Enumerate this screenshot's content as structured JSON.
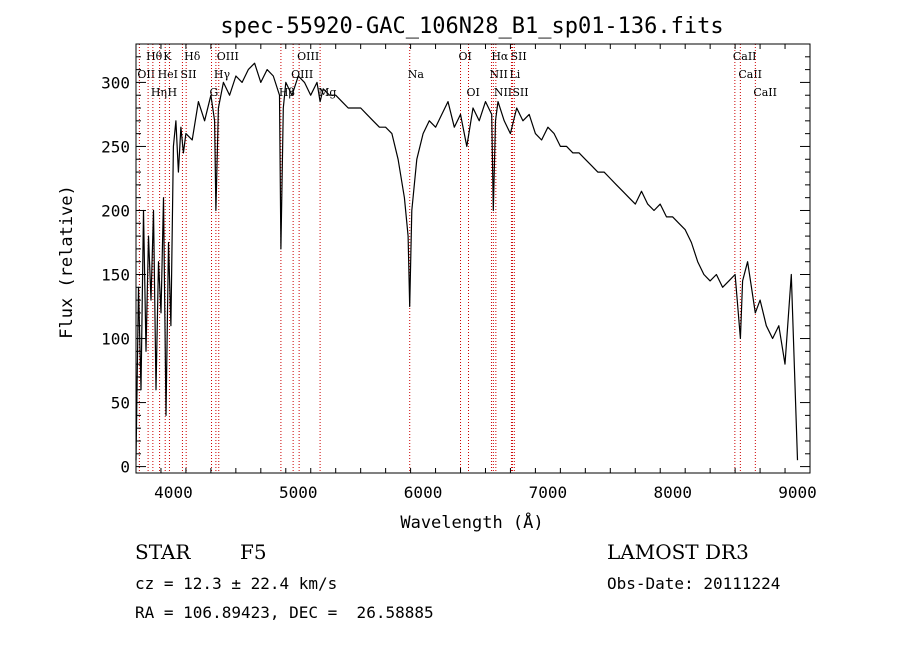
{
  "chart_data": {
    "type": "line",
    "title": "spec-55920-GAC_106N28_B1_sp01-136.fits",
    "xlabel": "Wavelength (Å)",
    "ylabel": "Flux (relative)",
    "xlim": [
      3700,
      9100
    ],
    "ylim": [
      -5,
      330
    ],
    "xticks": [
      4000,
      5000,
      6000,
      7000,
      8000,
      9000
    ],
    "yticks": [
      0,
      50,
      100,
      150,
      200,
      250,
      300
    ],
    "grid": false,
    "series": [
      {
        "x": [
          3700,
          3720,
          3740,
          3760,
          3780,
          3800,
          3820,
          3840,
          3860,
          3880,
          3900,
          3920,
          3940,
          3960,
          3980,
          4000,
          4020,
          4040,
          4060,
          4080,
          4100,
          4150,
          4200,
          4250,
          4300,
          4330,
          4340,
          4360,
          4400,
          4450,
          4500,
          4550,
          4600,
          4650,
          4700,
          4750,
          4800,
          4850,
          4861,
          4880,
          4900,
          4950,
          5000,
          5050,
          5100,
          5150,
          5175,
          5200,
          5250,
          5300,
          5350,
          5400,
          5450,
          5500,
          5550,
          5600,
          5650,
          5700,
          5750,
          5800,
          5850,
          5880,
          5893,
          5910,
          5950,
          6000,
          6050,
          6100,
          6150,
          6200,
          6250,
          6300,
          6350,
          6400,
          6450,
          6500,
          6550,
          6563,
          6580,
          6600,
          6650,
          6700,
          6750,
          6800,
          6850,
          6900,
          6950,
          7000,
          7050,
          7100,
          7150,
          7200,
          7250,
          7300,
          7350,
          7400,
          7450,
          7500,
          7550,
          7600,
          7650,
          7700,
          7750,
          7800,
          7850,
          7900,
          7950,
          8000,
          8050,
          8100,
          8150,
          8200,
          8250,
          8300,
          8350,
          8400,
          8450,
          8500,
          8542,
          8560,
          8600,
          8662,
          8700,
          8750,
          8800,
          8850,
          8900,
          8950,
          9000
        ],
        "y": [
          5,
          140,
          60,
          200,
          90,
          180,
          130,
          200,
          60,
          160,
          120,
          210,
          40,
          175,
          110,
          250,
          270,
          230,
          265,
          245,
          260,
          255,
          285,
          270,
          290,
          270,
          200,
          280,
          300,
          290,
          305,
          300,
          310,
          315,
          300,
          310,
          305,
          290,
          170,
          280,
          300,
          290,
          305,
          300,
          290,
          300,
          285,
          295,
          290,
          290,
          285,
          280,
          280,
          280,
          275,
          270,
          265,
          265,
          260,
          240,
          210,
          180,
          125,
          200,
          240,
          260,
          270,
          265,
          275,
          285,
          265,
          275,
          250,
          280,
          270,
          285,
          275,
          200,
          270,
          285,
          270,
          260,
          280,
          270,
          275,
          260,
          255,
          265,
          260,
          250,
          250,
          245,
          245,
          240,
          235,
          230,
          230,
          225,
          220,
          215,
          210,
          205,
          215,
          205,
          200,
          205,
          195,
          195,
          190,
          185,
          175,
          160,
          150,
          145,
          150,
          140,
          145,
          150,
          100,
          145,
          160,
          120,
          130,
          110,
          100,
          110,
          80,
          150,
          5
        ]
      }
    ],
    "line_markers": [
      {
        "label": "Hθ",
        "x": 3797,
        "row": 0
      },
      {
        "label": "K",
        "x": 3934,
        "row": 0
      },
      {
        "label": "Hδ",
        "x": 4102,
        "row": 0
      },
      {
        "label": "OIII",
        "x": 4363,
        "row": 0
      },
      {
        "label": "OIII",
        "x": 5007,
        "row": 0
      },
      {
        "label": "OI",
        "x": 6300,
        "row": 0
      },
      {
        "label": "Hα",
        "x": 6563,
        "row": 0
      },
      {
        "label": "SII",
        "x": 6716,
        "row": 0
      },
      {
        "label": "CaII",
        "x": 8498,
        "row": 0
      },
      {
        "label": "OII",
        "x": 3727,
        "row": 1
      },
      {
        "label": "HeI",
        "x": 3889,
        "row": 1
      },
      {
        "label": "SII",
        "x": 4072,
        "row": 1
      },
      {
        "label": "Hγ",
        "x": 4340,
        "row": 1
      },
      {
        "label": "OIII",
        "x": 4959,
        "row": 1
      },
      {
        "label": "Na",
        "x": 5893,
        "row": 1
      },
      {
        "label": "NII",
        "x": 6548,
        "row": 1
      },
      {
        "label": "Li",
        "x": 6708,
        "row": 1
      },
      {
        "label": "CaII",
        "x": 8542,
        "row": 1
      },
      {
        "label": "Hη",
        "x": 3835,
        "row": 2
      },
      {
        "label": "H",
        "x": 3968,
        "row": 2
      },
      {
        "label": "G",
        "x": 4305,
        "row": 2
      },
      {
        "label": "Hβ",
        "x": 4861,
        "row": 2
      },
      {
        "label": "Mg",
        "x": 5175,
        "row": 2
      },
      {
        "label": "OI",
        "x": 6364,
        "row": 2
      },
      {
        "label": "NII",
        "x": 6583,
        "row": 2
      },
      {
        "label": "SII",
        "x": 6731,
        "row": 2
      },
      {
        "label": "CaII",
        "x": 8662,
        "row": 2
      }
    ]
  },
  "info": {
    "class_type": "STAR",
    "subclass": "F5",
    "redshift": "cz = 12.3 ± 22.4 km/s",
    "coords": "RA = 106.89423, DEC =  26.58885",
    "survey": "LAMOST DR3",
    "obs_date": "Obs-Date: 20111224"
  },
  "colors": {
    "line": "#000000",
    "marker": "#cc0000",
    "axes": "#000000"
  }
}
